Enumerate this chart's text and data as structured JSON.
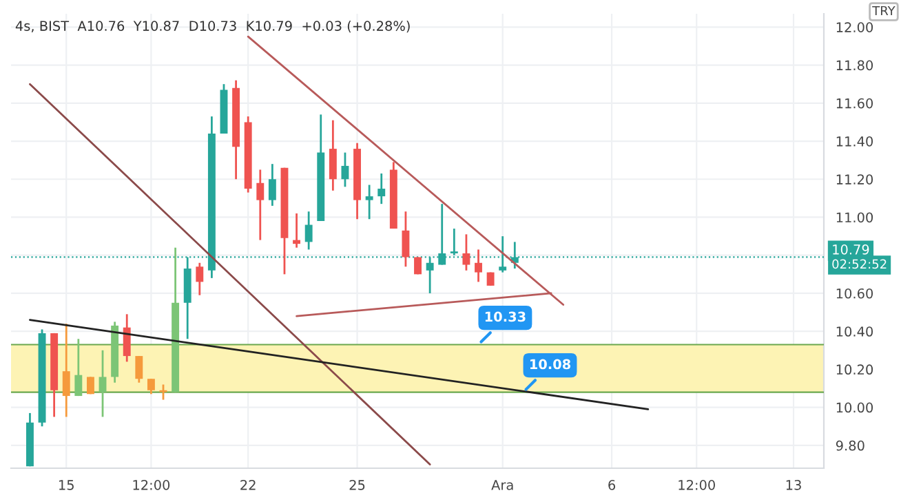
{
  "chart_data": {
    "type": "candlestick",
    "title": "4s, BIST  A10.76  Y10.87  D10.73  K10.79  +0.03 (+0.28%)",
    "categories": [
      null,
      null,
      null,
      "15",
      null,
      null,
      null,
      null,
      null,
      null,
      "12:00",
      null,
      null,
      null,
      null,
      null,
      null,
      null,
      "22",
      null,
      null,
      null,
      null,
      null,
      null,
      null,
      null,
      "25",
      null,
      null,
      null,
      null,
      null,
      null,
      null,
      null,
      null,
      null,
      null,
      "Ara",
      null,
      null,
      null,
      null,
      null,
      null,
      null,
      null,
      "6",
      null,
      null,
      null,
      null,
      null,
      null,
      "12:00",
      null,
      null,
      null,
      null,
      null,
      null,
      null,
      "13",
      null,
      null
    ],
    "ohlc": [
      [
        9.69,
        9.97,
        9.69,
        9.92
      ],
      [
        9.92,
        10.41,
        9.9,
        10.39
      ],
      [
        10.39,
        10.39,
        9.95,
        10.09
      ],
      [
        10.19,
        10.44,
        9.95,
        10.06
      ],
      [
        10.06,
        10.36,
        10.06,
        10.17
      ],
      [
        10.16,
        10.16,
        10.07,
        10.07
      ],
      [
        10.08,
        10.3,
        9.95,
        10.16
      ],
      [
        10.16,
        10.45,
        10.13,
        10.43
      ],
      [
        10.42,
        10.49,
        10.24,
        10.27
      ],
      [
        10.27,
        10.27,
        10.13,
        10.15
      ],
      [
        10.15,
        10.15,
        10.07,
        10.09
      ],
      [
        10.09,
        10.12,
        10.04,
        10.08
      ],
      [
        10.08,
        10.84,
        10.08,
        10.55
      ],
      [
        10.55,
        10.79,
        10.36,
        10.73
      ],
      [
        10.74,
        10.76,
        10.59,
        10.66
      ],
      [
        10.72,
        11.53,
        10.68,
        11.44
      ],
      [
        11.44,
        11.7,
        11.44,
        11.67
      ],
      [
        11.68,
        11.72,
        11.2,
        11.37
      ],
      [
        11.5,
        11.53,
        11.13,
        11.15
      ],
      [
        11.18,
        11.25,
        10.88,
        11.09
      ],
      [
        11.09,
        11.28,
        11.06,
        11.2
      ],
      [
        11.26,
        11.26,
        10.7,
        10.89
      ],
      [
        10.88,
        11.02,
        10.84,
        10.86
      ],
      [
        10.87,
        11.03,
        10.83,
        10.96
      ],
      [
        10.98,
        11.54,
        10.98,
        11.34
      ],
      [
        11.36,
        11.51,
        11.14,
        11.2
      ],
      [
        11.2,
        11.34,
        11.16,
        11.27
      ],
      [
        11.36,
        11.39,
        10.99,
        11.09
      ],
      [
        11.09,
        11.17,
        10.99,
        11.11
      ],
      [
        11.11,
        11.23,
        11.07,
        11.15
      ],
      [
        11.25,
        11.29,
        10.94,
        10.94
      ],
      [
        10.93,
        11.03,
        10.74,
        10.79
      ],
      [
        10.79,
        10.79,
        10.7,
        10.7
      ],
      [
        10.72,
        10.79,
        10.6,
        10.76
      ],
      [
        10.75,
        11.07,
        10.75,
        10.81
      ],
      [
        10.81,
        10.94,
        10.8,
        10.82
      ],
      [
        10.81,
        10.91,
        10.72,
        10.75
      ],
      [
        10.76,
        10.83,
        10.66,
        10.71
      ],
      [
        10.71,
        10.71,
        10.64,
        10.64
      ],
      [
        10.72,
        10.9,
        10.71,
        10.74
      ],
      [
        10.76,
        10.87,
        10.73,
        10.79
      ],
      null,
      null,
      null,
      null,
      null,
      null,
      null,
      null,
      null,
      null,
      null,
      null,
      null,
      null,
      null,
      null,
      null,
      null,
      null,
      null,
      null,
      null,
      null,
      null,
      null
    ],
    "colors": [
      "#26a69a",
      "#26a69a",
      "#ef5350",
      "#f59a3c",
      "#7cc576",
      "#f59a3c",
      "#7cc576",
      "#7cc576",
      "#ef5350",
      "#f59a3c",
      "#f59a3c",
      "#f59a3c",
      "#7cc576",
      "#26a69a",
      "#ef5350",
      "#26a69a",
      "#26a69a",
      "#ef5350",
      "#ef5350",
      "#ef5350",
      "#26a69a",
      "#ef5350",
      "#ef5350",
      "#26a69a",
      "#26a69a",
      "#ef5350",
      "#26a69a",
      "#ef5350",
      "#26a69a",
      "#26a69a",
      "#ef5350",
      "#ef5350",
      "#ef5350",
      "#26a69a",
      "#26a69a",
      "#26a69a",
      "#ef5350",
      "#ef5350",
      "#ef5350",
      "#26a69a",
      "#26a69a",
      null,
      null,
      null,
      null,
      null,
      null,
      null,
      null,
      null,
      null,
      null,
      null,
      null,
      null,
      null,
      null,
      null,
      null,
      null,
      null,
      null,
      null,
      null,
      null,
      null
    ],
    "series": [
      {
        "type": "line",
        "color": "#8b4a4a",
        "values": [
          11.7,
          null,
          null,
          null,
          null,
          null,
          null,
          null,
          null,
          null,
          null,
          null,
          null,
          null,
          null,
          null,
          null,
          null,
          null,
          null,
          null,
          null,
          null,
          null,
          null,
          null,
          null,
          null,
          null,
          null,
          null,
          null,
          null,
          9.7,
          null,
          null,
          null,
          null,
          null,
          null,
          null,
          null,
          null,
          null,
          null,
          null,
          null,
          null,
          null,
          null,
          null,
          null,
          null,
          null,
          null,
          null,
          null,
          null,
          null,
          null,
          null,
          null,
          null,
          null,
          null,
          null
        ]
      },
      {
        "type": "line",
        "color": "#222222",
        "values": [
          10.46,
          null,
          null,
          null,
          null,
          null,
          null,
          null,
          null,
          null,
          null,
          null,
          null,
          null,
          null,
          null,
          null,
          null,
          null,
          null,
          null,
          null,
          null,
          null,
          null,
          null,
          null,
          null,
          null,
          null,
          null,
          null,
          null,
          null,
          null,
          null,
          null,
          null,
          null,
          null,
          null,
          null,
          null,
          null,
          null,
          null,
          null,
          null,
          null,
          null,
          null,
          9.99,
          null,
          null,
          null,
          null,
          null,
          null,
          null,
          null,
          null,
          null,
          null,
          null,
          null,
          null
        ]
      },
      {
        "type": "line",
        "color": "#b85a5a",
        "values": [
          null,
          null,
          null,
          null,
          null,
          null,
          null,
          null,
          null,
          null,
          null,
          null,
          null,
          null,
          null,
          null,
          null,
          null,
          11.95,
          null,
          null,
          null,
          null,
          null,
          null,
          null,
          null,
          null,
          null,
          null,
          null,
          null,
          null,
          null,
          null,
          null,
          null,
          null,
          null,
          null,
          null,
          null,
          null,
          null,
          10.54,
          null,
          null,
          null,
          null,
          null,
          null,
          null,
          null,
          null,
          null,
          null,
          null,
          null,
          null,
          null,
          null,
          null,
          null,
          null,
          null,
          null
        ]
      },
      {
        "type": "line",
        "color": "#b85a5a",
        "values": [
          null,
          null,
          null,
          null,
          null,
          null,
          null,
          null,
          null,
          null,
          null,
          null,
          null,
          null,
          null,
          null,
          null,
          null,
          null,
          null,
          null,
          null,
          10.48,
          null,
          null,
          null,
          null,
          null,
          null,
          null,
          null,
          null,
          null,
          null,
          null,
          null,
          null,
          null,
          null,
          null,
          null,
          null,
          null,
          10.6,
          null,
          null,
          null,
          null,
          null,
          null,
          null,
          null,
          null,
          null,
          null,
          null,
          null,
          null,
          null,
          null,
          null,
          null,
          null,
          null,
          null,
          null
        ]
      }
    ],
    "bands": [
      {
        "axis": "y",
        "from": 10.08,
        "to": 10.33,
        "color": "#fdf3b4"
      }
    ],
    "ref_lines": [
      {
        "axis": "y",
        "value": 10.79,
        "label": "10.79",
        "color": "#26a69a",
        "line_style": "dotted"
      },
      {
        "axis": "y",
        "value": 10.33,
        "color": "#6aa84f",
        "line_style": "solid"
      },
      {
        "axis": "y",
        "value": 10.08,
        "color": "#6aa84f",
        "line_style": "solid"
      }
    ],
    "annotations": [
      {
        "text": "10.33",
        "y": 10.33
      },
      {
        "text": "10.08",
        "y": 10.08
      },
      "02:52:52",
      "TRY"
    ],
    "ylim": [
      9.68,
      12.07
    ],
    "yticks": [
      {
        "value": 9.8,
        "label": "9.80"
      },
      {
        "value": 10.0,
        "label": "10.00"
      },
      {
        "value": 10.2,
        "label": "10.20"
      },
      {
        "value": 10.4,
        "label": "10.40"
      },
      {
        "value": 10.6,
        "label": "10.60"
      },
      {
        "value": 10.8,
        "label": null
      },
      {
        "value": 11.0,
        "label": "11.00"
      },
      {
        "value": 11.2,
        "label": "11.20"
      },
      {
        "value": 11.4,
        "label": "11.40"
      },
      {
        "value": 11.6,
        "label": "11.60"
      },
      {
        "value": 11.8,
        "label": "11.80"
      },
      {
        "value": 12.0,
        "label": "12.00"
      }
    ],
    "grid": true
  }
}
